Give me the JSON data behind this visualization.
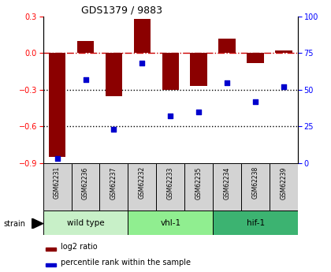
{
  "title": "GDS1379 / 9883",
  "samples": [
    "GSM62231",
    "GSM62236",
    "GSM62237",
    "GSM62232",
    "GSM62233",
    "GSM62235",
    "GSM62234",
    "GSM62238",
    "GSM62239"
  ],
  "log2_ratio": [
    -0.85,
    0.1,
    -0.35,
    0.28,
    -0.3,
    -0.27,
    0.12,
    -0.08,
    0.02
  ],
  "percentile_rank": [
    3,
    57,
    23,
    68,
    32,
    35,
    55,
    42,
    52
  ],
  "ylim_left": [
    -0.9,
    0.3
  ],
  "ylim_right": [
    0,
    100
  ],
  "yticks_left": [
    0.3,
    0.0,
    -0.3,
    -0.6,
    -0.9
  ],
  "yticks_right": [
    100,
    75,
    50,
    25,
    0
  ],
  "bar_color": "#8B0000",
  "dot_color": "#0000CD",
  "groups": [
    {
      "label": "wild type",
      "start": 0,
      "end": 3,
      "color": "#c8f0c8"
    },
    {
      "label": "vhl-1",
      "start": 3,
      "end": 6,
      "color": "#90ee90"
    },
    {
      "label": "hif-1",
      "start": 6,
      "end": 9,
      "color": "#3cb371"
    }
  ],
  "strain_label": "strain",
  "legend_bar_label": "log2 ratio",
  "legend_dot_label": "percentile rank within the sample",
  "sample_box_color": "#d3d3d3",
  "hline_color": "#cc0000",
  "dotted_line_color": "#000000"
}
